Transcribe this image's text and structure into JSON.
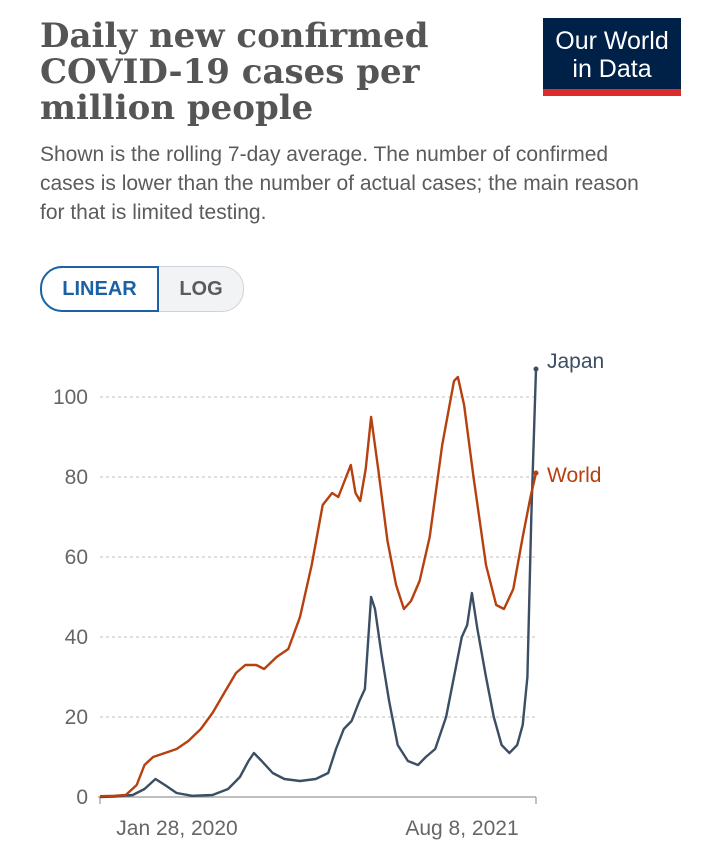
{
  "header": {
    "title": "Daily new confirmed COVID-19 cases per million people",
    "subtitle": "Shown is the rolling 7-day average. The number of confirmed cases is lower than the number of actual cases; the main reason for that is limited testing.",
    "logo_line1": "Our World",
    "logo_line2": "in Data"
  },
  "toggle": {
    "linear_label": "LINEAR",
    "log_label": "LOG",
    "selected": "LINEAR"
  },
  "colors": {
    "japan": "#3b4e63",
    "world": "#b7400f",
    "logo_bg": "#002147",
    "logo_bar": "#dd2c2c",
    "accent": "#1a62a5"
  },
  "chart_data": {
    "type": "line",
    "title": "Daily new confirmed COVID-19 cases per million people",
    "xlabel": "",
    "ylabel": "",
    "x_start": "2020-01-28",
    "x_end": "2021-08-08",
    "x_tick_labels": [
      "Jan 28, 2020",
      "Aug 8, 2021"
    ],
    "y_ticks": [
      0,
      20,
      40,
      60,
      80,
      100
    ],
    "ylim": [
      0,
      108
    ],
    "grid": "horizontal dashed",
    "legend": "line-end labels",
    "series": [
      {
        "name": "Japan",
        "color": "#3b4e63",
        "points": [
          [
            "2020-01-28",
            0
          ],
          [
            "2020-02-15",
            0.1
          ],
          [
            "2020-03-10",
            0.5
          ],
          [
            "2020-03-25",
            2
          ],
          [
            "2020-04-08",
            4.5
          ],
          [
            "2020-04-20",
            3
          ],
          [
            "2020-05-05",
            1
          ],
          [
            "2020-05-25",
            0.3
          ],
          [
            "2020-06-20",
            0.5
          ],
          [
            "2020-07-10",
            2
          ],
          [
            "2020-07-25",
            5
          ],
          [
            "2020-08-05",
            9
          ],
          [
            "2020-08-12",
            11
          ],
          [
            "2020-08-22",
            9
          ],
          [
            "2020-09-05",
            6
          ],
          [
            "2020-09-20",
            4.5
          ],
          [
            "2020-10-10",
            4
          ],
          [
            "2020-10-30",
            4.5
          ],
          [
            "2020-11-15",
            6
          ],
          [
            "2020-11-25",
            12
          ],
          [
            "2020-12-05",
            17
          ],
          [
            "2020-12-15",
            19
          ],
          [
            "2020-12-25",
            24
          ],
          [
            "2021-01-01",
            27
          ],
          [
            "2021-01-09",
            50
          ],
          [
            "2021-01-14",
            47
          ],
          [
            "2021-01-22",
            36
          ],
          [
            "2021-02-01",
            24
          ],
          [
            "2021-02-12",
            13
          ],
          [
            "2021-02-25",
            9
          ],
          [
            "2021-03-10",
            8
          ],
          [
            "2021-03-20",
            10
          ],
          [
            "2021-04-01",
            12
          ],
          [
            "2021-04-15",
            20
          ],
          [
            "2021-04-28",
            33
          ],
          [
            "2021-05-05",
            40
          ],
          [
            "2021-05-12",
            43
          ],
          [
            "2021-05-18",
            51
          ],
          [
            "2021-05-25",
            42
          ],
          [
            "2021-06-05",
            30
          ],
          [
            "2021-06-15",
            20
          ],
          [
            "2021-06-25",
            13
          ],
          [
            "2021-07-05",
            11
          ],
          [
            "2021-07-15",
            13
          ],
          [
            "2021-07-22",
            18
          ],
          [
            "2021-07-28",
            30
          ],
          [
            "2021-08-02",
            70
          ],
          [
            "2021-08-08",
            107
          ]
        ]
      },
      {
        "name": "World",
        "color": "#b7400f",
        "points": [
          [
            "2020-01-28",
            0.2
          ],
          [
            "2020-02-15",
            0.3
          ],
          [
            "2020-03-01",
            0.5
          ],
          [
            "2020-03-15",
            3
          ],
          [
            "2020-03-25",
            8
          ],
          [
            "2020-04-05",
            10
          ],
          [
            "2020-04-20",
            11
          ],
          [
            "2020-05-05",
            12
          ],
          [
            "2020-05-20",
            14
          ],
          [
            "2020-06-05",
            17
          ],
          [
            "2020-06-20",
            21
          ],
          [
            "2020-07-05",
            26
          ],
          [
            "2020-07-20",
            31
          ],
          [
            "2020-08-01",
            33
          ],
          [
            "2020-08-15",
            33
          ],
          [
            "2020-08-25",
            32
          ],
          [
            "2020-09-10",
            35
          ],
          [
            "2020-09-25",
            37
          ],
          [
            "2020-10-10",
            45
          ],
          [
            "2020-10-25",
            58
          ],
          [
            "2020-11-08",
            73
          ],
          [
            "2020-11-20",
            76
          ],
          [
            "2020-11-28",
            75
          ],
          [
            "2020-12-08",
            80
          ],
          [
            "2020-12-14",
            83
          ],
          [
            "2020-12-20",
            76
          ],
          [
            "2020-12-26",
            74
          ],
          [
            "2021-01-02",
            82
          ],
          [
            "2021-01-09",
            95
          ],
          [
            "2021-01-18",
            82
          ],
          [
            "2021-01-30",
            64
          ],
          [
            "2021-02-10",
            53
          ],
          [
            "2021-02-20",
            47
          ],
          [
            "2021-03-01",
            49
          ],
          [
            "2021-03-12",
            54
          ],
          [
            "2021-03-25",
            65
          ],
          [
            "2021-04-10",
            88
          ],
          [
            "2021-04-25",
            104
          ],
          [
            "2021-04-30",
            105
          ],
          [
            "2021-05-08",
            98
          ],
          [
            "2021-05-20",
            80
          ],
          [
            "2021-06-05",
            58
          ],
          [
            "2021-06-18",
            48
          ],
          [
            "2021-06-28",
            47
          ],
          [
            "2021-07-10",
            52
          ],
          [
            "2021-07-22",
            65
          ],
          [
            "2021-08-01",
            75
          ],
          [
            "2021-08-08",
            81
          ]
        ]
      }
    ]
  }
}
